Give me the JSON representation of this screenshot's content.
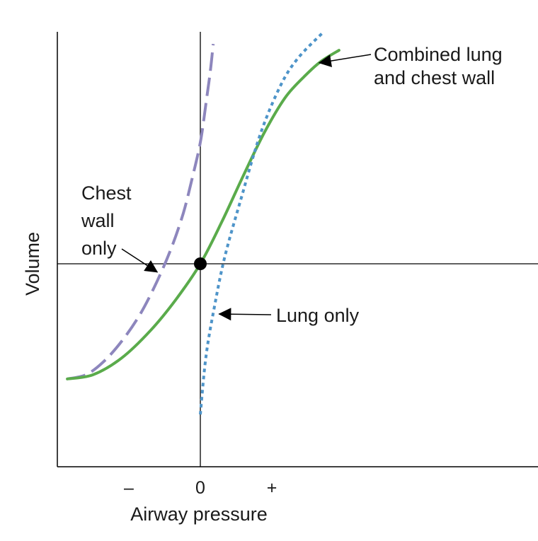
{
  "chart_data": {
    "type": "line",
    "title": "",
    "xlabel": "Airway pressure",
    "ylabel": "Volume",
    "xlim": [
      -1,
      2.35
    ],
    "ylim": [
      -1,
      1.08
    ],
    "x_ticks": [
      {
        "value": -0.5,
        "label": "–"
      },
      {
        "value": 0,
        "label": "0"
      },
      {
        "value": 0.5,
        "label": "+"
      }
    ],
    "grid": false,
    "legend": "none",
    "origin_point": {
      "x": 0,
      "y": 0
    },
    "series": [
      {
        "name": "Chest wall only",
        "style": "dashed",
        "color": "#8d86bd",
        "points": [
          [
            -0.93,
            -0.55
          ],
          [
            -0.8,
            -0.53
          ],
          [
            -0.68,
            -0.47
          ],
          [
            -0.55,
            -0.37
          ],
          [
            -0.42,
            -0.24
          ],
          [
            -0.3,
            -0.08
          ],
          [
            -0.2,
            0.08
          ],
          [
            -0.12,
            0.24
          ],
          [
            -0.06,
            0.4
          ],
          [
            0,
            0.58
          ],
          [
            0.04,
            0.77
          ],
          [
            0.07,
            0.92
          ],
          [
            0.09,
            1.05
          ]
        ]
      },
      {
        "name": "Combined lung and chest wall",
        "style": "solid",
        "color": "#5aab4b",
        "points": [
          [
            -0.93,
            -0.55
          ],
          [
            -0.75,
            -0.53
          ],
          [
            -0.55,
            -0.45
          ],
          [
            -0.35,
            -0.32
          ],
          [
            -0.17,
            -0.17
          ],
          [
            0,
            0
          ],
          [
            0.15,
            0.2
          ],
          [
            0.3,
            0.42
          ],
          [
            0.45,
            0.63
          ],
          [
            0.6,
            0.8
          ],
          [
            0.75,
            0.91
          ],
          [
            0.85,
            0.97
          ],
          [
            0.97,
            1.02
          ]
        ]
      },
      {
        "name": "Lung only",
        "style": "dotted",
        "color": "#4e94c9",
        "points": [
          [
            0,
            -0.72
          ],
          [
            0.04,
            -0.44
          ],
          [
            0.1,
            -0.2
          ],
          [
            0.17,
            0.03
          ],
          [
            0.28,
            0.3
          ],
          [
            0.42,
            0.62
          ],
          [
            0.56,
            0.85
          ],
          [
            0.68,
            0.98
          ],
          [
            0.85,
            1.1
          ]
        ]
      }
    ],
    "annotations": [
      {
        "lines": [
          "Combined lung",
          "and chest wall"
        ],
        "series": "Combined lung and chest wall",
        "point": [
          0.83,
          0.96
        ]
      },
      {
        "lines": [
          "Lung only"
        ],
        "series": "Lung only",
        "point": [
          0.13,
          -0.24
        ]
      },
      {
        "lines": [
          "Chest",
          "wall",
          "only"
        ],
        "series": "Chest wall only",
        "point": [
          -0.3,
          -0.04
        ]
      }
    ]
  }
}
